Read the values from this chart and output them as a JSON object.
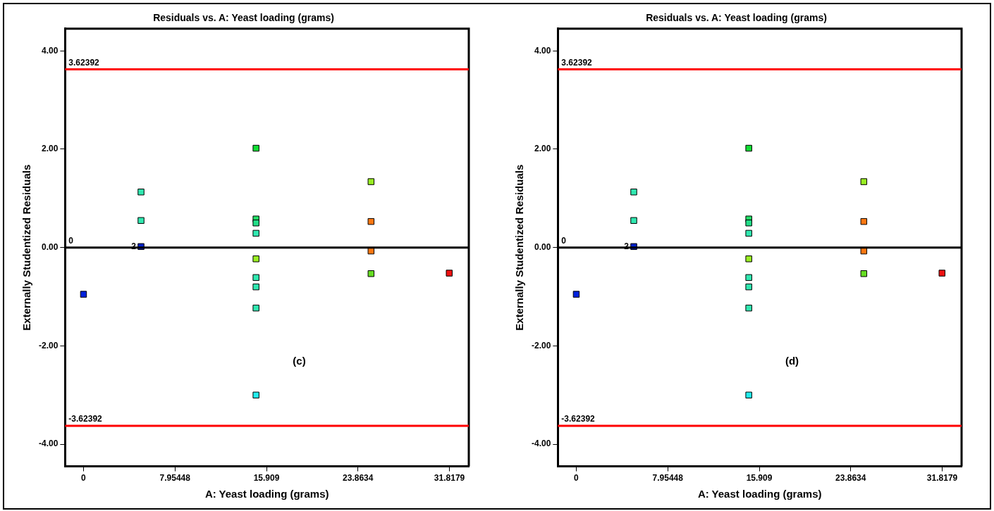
{
  "chart_data": [
    {
      "type": "scatter",
      "title": "Residuals vs. A: Yeast loading (grams)",
      "xlabel": "A: Yeast loading (grams)",
      "ylabel": "Externally Studentized Residuals",
      "x": [
        0,
        5,
        5,
        5,
        15,
        15,
        15,
        15,
        15,
        15,
        15,
        15,
        15,
        25,
        25,
        25,
        25,
        31.8
      ],
      "values": [
        -0.95,
        1.13,
        0.55,
        0.02,
        2.02,
        0.58,
        0.5,
        0.29,
        -0.23,
        -0.61,
        -0.8,
        -1.23,
        -3.0,
        1.34,
        0.53,
        -0.07,
        -0.53,
        -0.52
      ],
      "colors": [
        "#0022dd",
        "#30e8b0",
        "#30e8b0",
        "#0022cc",
        "#11dd33",
        "#22dd66",
        "#22dd88",
        "#30e8b0",
        "#99ee22",
        "#30e8b0",
        "#30e8b0",
        "#30e8b0",
        "#22eeee",
        "#99ee22",
        "#ff7711",
        "#ff7711",
        "#66dd22",
        "#ee1111"
      ],
      "marker": "square",
      "xlim": [
        -1.6,
        33.5
      ],
      "xticks": [
        0,
        7.95448,
        15.909,
        23.8634,
        31.8179
      ],
      "ylim": [
        -4.45,
        4.45
      ],
      "yticks": [
        {
          "value": -4,
          "label": "-4.00"
        },
        {
          "value": -2,
          "label": "-2.00"
        },
        {
          "value": 0,
          "label": "0.00"
        },
        {
          "value": 2,
          "label": "2.00"
        },
        {
          "value": 4,
          "label": "4.00"
        }
      ],
      "ref_lines": [
        {
          "axis": "y",
          "value": 3.62392,
          "label": "3.62392",
          "color": "#ff0000"
        },
        {
          "axis": "y",
          "value": 0,
          "label": "0",
          "color": "#000000"
        },
        {
          "axis": "y",
          "value": -3.62392,
          "label": "-3.62392",
          "color": "#ff0000"
        }
      ],
      "annotations": [
        {
          "text": "2",
          "x": 5,
          "y": 0.02
        },
        "(c)"
      ]
    },
    {
      "type": "scatter",
      "title": "Residuals vs. A: Yeast loading (grams)",
      "xlabel": "A: Yeast loading (grams)",
      "ylabel": "Externally Studentized Residuals",
      "x": [
        0,
        5,
        5,
        5,
        15,
        15,
        15,
        15,
        15,
        15,
        15,
        15,
        15,
        25,
        25,
        25,
        25,
        31.8
      ],
      "values": [
        -0.95,
        1.13,
        0.55,
        0.02,
        2.02,
        0.58,
        0.5,
        0.29,
        -0.23,
        -0.61,
        -0.8,
        -1.23,
        -3.0,
        1.34,
        0.53,
        -0.07,
        -0.53,
        -0.52
      ],
      "colors": [
        "#0022dd",
        "#30e8b0",
        "#30e8b0",
        "#0022cc",
        "#11dd33",
        "#22dd66",
        "#22dd88",
        "#30e8b0",
        "#99ee22",
        "#30e8b0",
        "#30e8b0",
        "#30e8b0",
        "#22eeee",
        "#99ee22",
        "#ff7711",
        "#ff7711",
        "#66dd22",
        "#ee1111"
      ],
      "marker": "square",
      "xlim": [
        -1.6,
        33.5
      ],
      "xticks": [
        0,
        7.95448,
        15.909,
        23.8634,
        31.8179
      ],
      "ylim": [
        -4.45,
        4.45
      ],
      "yticks": [
        {
          "value": -4,
          "label": "-4.00"
        },
        {
          "value": -2,
          "label": "-2.00"
        },
        {
          "value": 0,
          "label": "0.00"
        },
        {
          "value": 2,
          "label": "2.00"
        },
        {
          "value": 4,
          "label": "4.00"
        }
      ],
      "ref_lines": [
        {
          "axis": "y",
          "value": 3.62392,
          "label": "3.62392",
          "color": "#ff0000"
        },
        {
          "axis": "y",
          "value": 0,
          "label": "0",
          "color": "#000000"
        },
        {
          "axis": "y",
          "value": -3.62392,
          "label": "-3.62392",
          "color": "#ff0000"
        }
      ],
      "annotations": [
        {
          "text": "2",
          "x": 5,
          "y": 0.02
        },
        "(d)"
      ]
    }
  ]
}
